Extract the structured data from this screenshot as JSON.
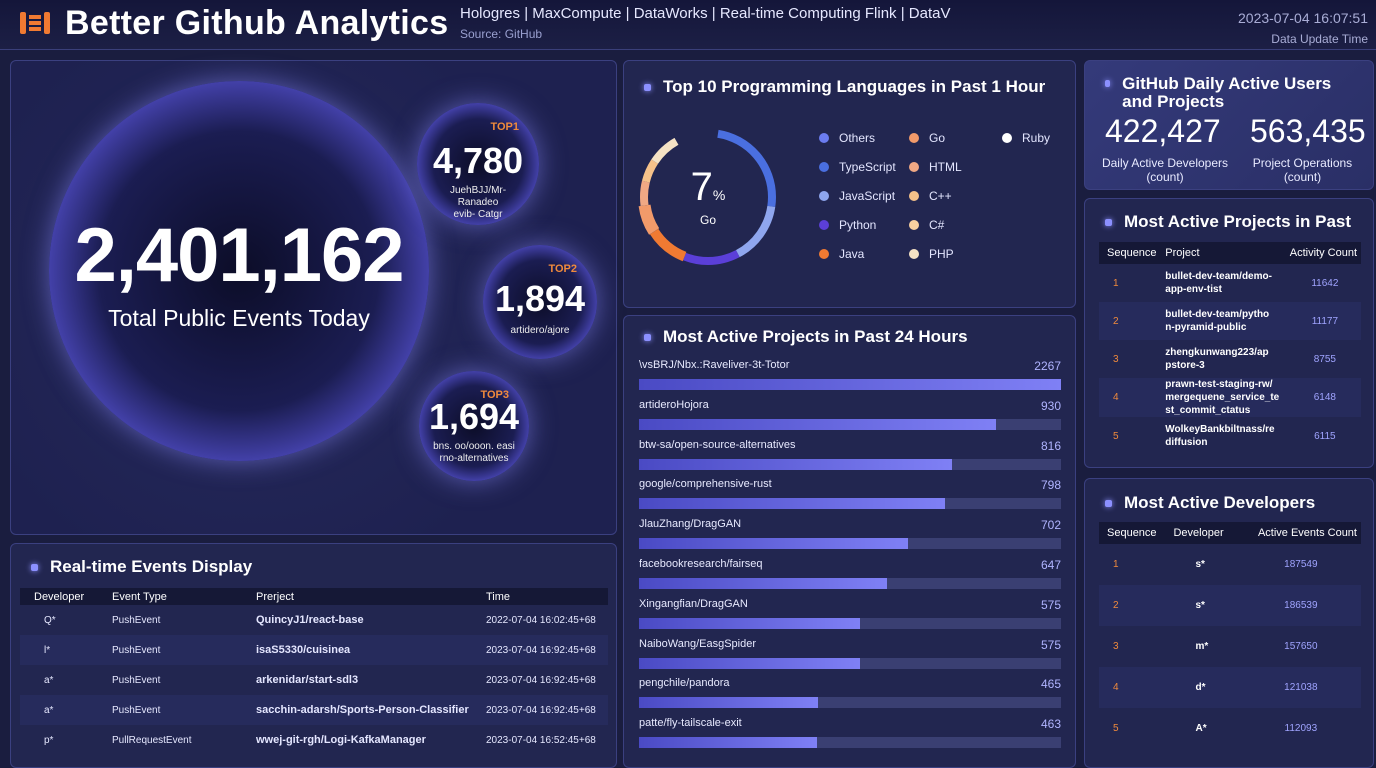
{
  "header": {
    "title": "Better Github Analytics",
    "products": "Hologres | MaxCompute | DataWorks | Real-time Computing Flink | DataV",
    "source": "Source:  GitHub",
    "datetime": "2023-07-04 16:07:51",
    "update_label": "Data Update Time",
    "logo_icon": "logo-icon"
  },
  "overview": {
    "total_events": "2,401,162",
    "total_label": "Total Public Events Today",
    "top_projects": [
      {
        "badge": "TOP1",
        "value": "4,780",
        "name": "JuehBJJ/Mr- Ranadeo\nevib- Catgr"
      },
      {
        "badge": "TOP2",
        "value": "1,894",
        "name": "artidero/ajore"
      },
      {
        "badge": "TOP3",
        "value": "1,694",
        "name": "bns. oo/ooon. easi\nrno-alternatives"
      }
    ]
  },
  "languages": {
    "title": "Top 10 Programming Languages in Past 1 Hour",
    "center_value": "7",
    "center_unit": "%",
    "center_label": "Go",
    "legend": [
      {
        "name": "Others",
        "color": "#6b7cf0"
      },
      {
        "name": "TypeScript",
        "color": "#4a6fe0"
      },
      {
        "name": "JavaScript",
        "color": "#8fa6ee"
      },
      {
        "name": "Python",
        "color": "#5b3fd8"
      },
      {
        "name": "Java",
        "color": "#f07a32"
      },
      {
        "name": "Go",
        "color": "#f29a6a"
      },
      {
        "name": "HTML",
        "color": "#f0a884"
      },
      {
        "name": "C++",
        "color": "#f6c28a"
      },
      {
        "name": "C#",
        "color": "#f8d0a0"
      },
      {
        "name": "PHP",
        "color": "#f5e2c4"
      },
      {
        "name": "Ruby",
        "color": "#ffffff"
      }
    ]
  },
  "dau": {
    "title": "GitHub Daily Active Users and Projects",
    "developers_value": "422,427",
    "developers_label": "Daily Active Developers\n(count)",
    "operations_value": "563,435",
    "operations_label": "Project Operations\n(count)"
  },
  "projects_past": {
    "title": "Most Active Projects in Past",
    "headers": [
      "Sequence",
      "Project",
      "Activity Count"
    ],
    "rows": [
      {
        "seq": "1",
        "project": "bullet-dev-team/demo-\napp-env-tist",
        "count": "11642"
      },
      {
        "seq": "2",
        "project": "bullet-dev-team/pytho\nn-pyramid-public",
        "count": "11177"
      },
      {
        "seq": "3",
        "project": "zhengkunwang223/ap\npstore-3",
        "count": "8755"
      },
      {
        "seq": "4",
        "project": "prawn-test-staging-rw/\nmergequene_service_te\nst_commit_ctatus",
        "count": "6148"
      },
      {
        "seq": "5",
        "project": "WolkeyBankbiltnass/re\ndiffusion",
        "count": "6115"
      }
    ]
  },
  "projects_24h": {
    "title": "Most Active Projects in Past 24 Hours",
    "rows": [
      {
        "name": "\\vsBRJ/Nbx.:Raveliver-3t-Totor",
        "value": "2267"
      },
      {
        "name": "artideroHojora",
        "value": "930"
      },
      {
        "name": "btw-sa/open-source-alternatives",
        "value": "816"
      },
      {
        "name": "google/comprehensive-rust",
        "value": "798"
      },
      {
        "name": "JlauZhang/DragGAN",
        "value": "702"
      },
      {
        "name": "facebookresearch/fairseq",
        "value": "647"
      },
      {
        "name": "Xingangfian/DragGAN",
        "value": "575"
      },
      {
        "name": "NaiboWang/EasgSpider",
        "value": "575"
      },
      {
        "name": "pengchile/pandora",
        "value": "465"
      },
      {
        "name": "patte/fly-tailscale-exit",
        "value": "463"
      }
    ]
  },
  "developers": {
    "title": "Most Active Developers",
    "headers": [
      "Sequence",
      "Developer",
      "Active Events Count"
    ],
    "rows": [
      {
        "seq": "1",
        "dev": "s*",
        "count": "187549"
      },
      {
        "seq": "2",
        "dev": "s*",
        "count": "186539"
      },
      {
        "seq": "3",
        "dev": "m*",
        "count": "157650"
      },
      {
        "seq": "4",
        "dev": "d*",
        "count": "121038"
      },
      {
        "seq": "5",
        "dev": "A*",
        "count": "112093"
      }
    ]
  },
  "realtime": {
    "title": "Real-time Events Display",
    "headers": [
      "Developer",
      "Event Type",
      "Prerject",
      "Time"
    ],
    "rows": [
      {
        "dev": "Q*",
        "type": "PushEvent",
        "project": "QuincyJ1/react-base",
        "time": "2022-07-04 16:02:45+68"
      },
      {
        "dev": "l*",
        "type": "PushEvent",
        "project": "isaS5330/cuisinea",
        "time": "2023-07-04 16:92:45+68"
      },
      {
        "dev": "a*",
        "type": "PushEvent",
        "project": "arkenidar/start-sdl3",
        "time": "2023-07-04 16:92:45+68"
      },
      {
        "dev": "a*",
        "type": "PushEvent",
        "project": "sacchin-adarsh/Sports-Person-Classifier",
        "time": "2023-07-04 16:92:45+68"
      },
      {
        "dev": "p*",
        "type": "PullRequestEvent",
        "project": "wwej-git-rgh/Logi-KafkaManager",
        "time": "2023-07-04 16:52:45+68"
      }
    ]
  }
}
